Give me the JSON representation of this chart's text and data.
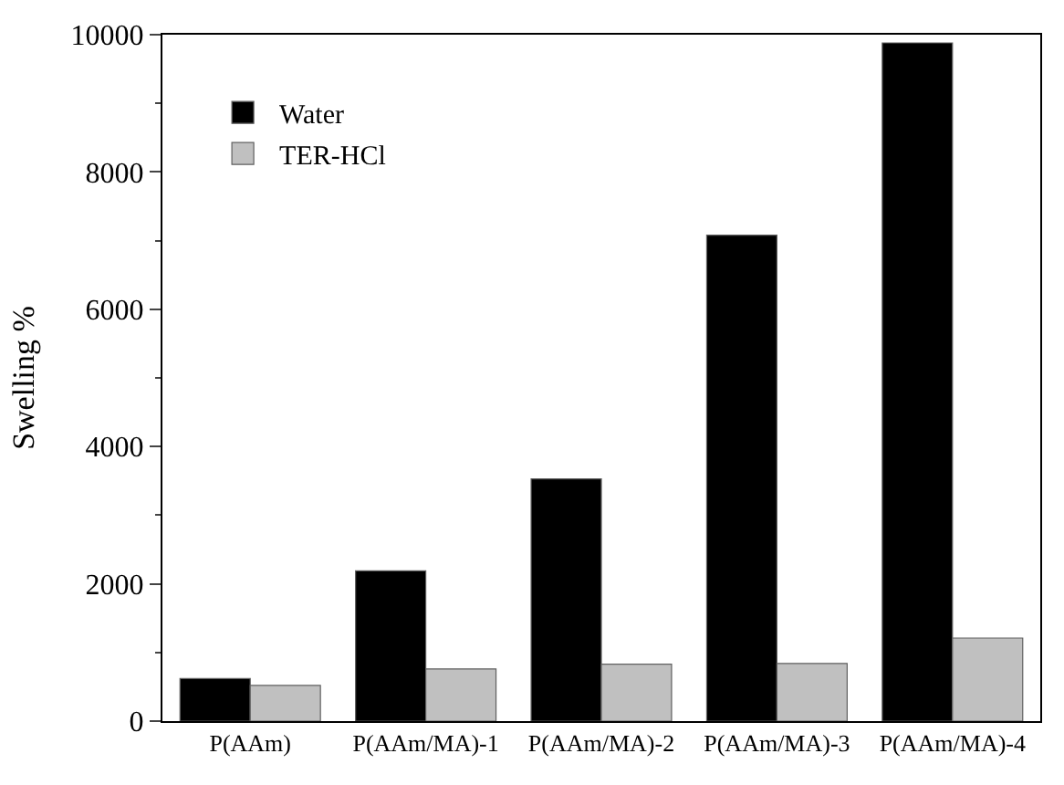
{
  "chart_data": {
    "type": "bar",
    "ylabel": "Swelling %",
    "categories": [
      "P(AAm)",
      "P(AAm/MA)-1",
      "P(AAm/MA)-2",
      "P(AAm/MA)-3",
      "P(AAm/MA)-4"
    ],
    "series": [
      {
        "name": "Water",
        "color": "#000000",
        "values": [
          620,
          2190,
          3530,
          7080,
          9880
        ]
      },
      {
        "name": "TER-HCl",
        "color": "#c0c0c0",
        "values": [
          520,
          760,
          830,
          840,
          1210
        ]
      }
    ],
    "ylim": [
      0,
      10000
    ],
    "yticks": [
      0,
      2000,
      4000,
      6000,
      8000,
      10000
    ],
    "legend": "top left"
  }
}
